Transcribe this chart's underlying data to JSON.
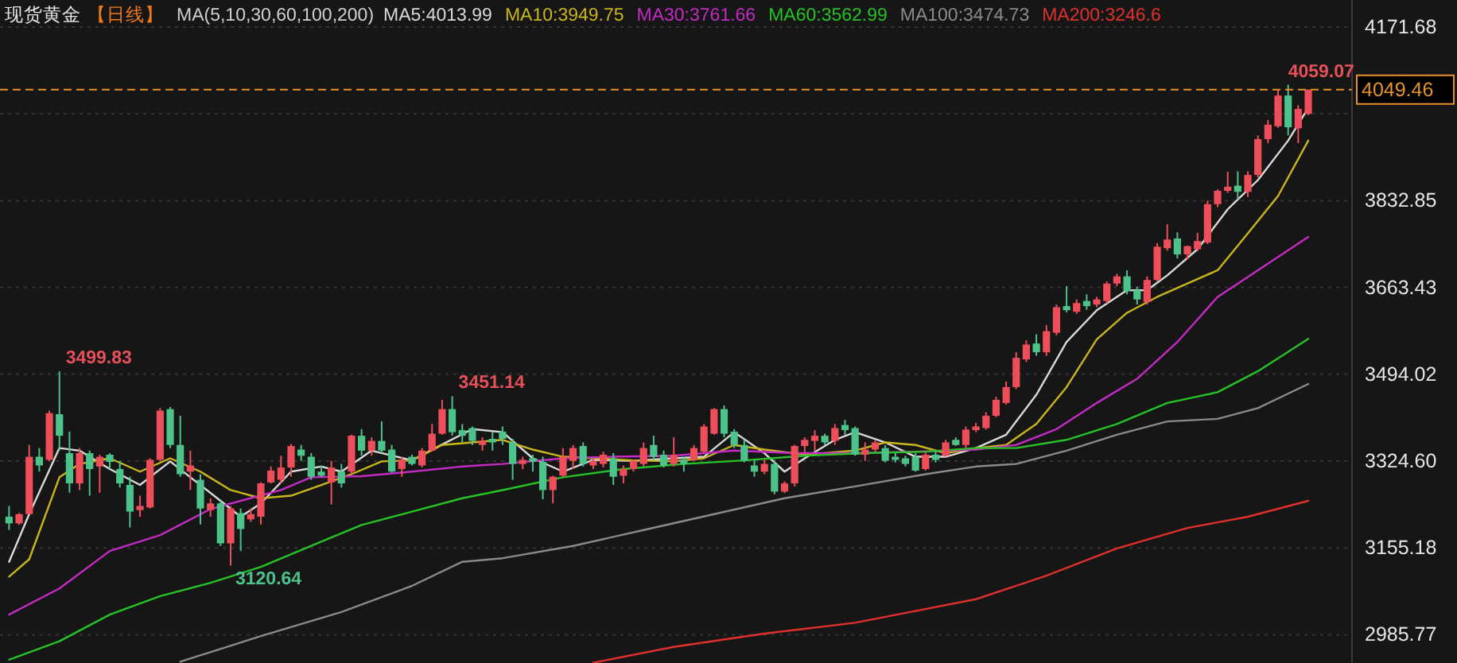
{
  "chart_data": {
    "type": "candlestick",
    "title": "现货黄金",
    "subtitle": "【日线】",
    "legend_title": "MA(5,10,30,60,100,200)",
    "legend": "top",
    "grid": "y",
    "ylim": [
      2930.5,
      4224.4
    ],
    "yticks": [
      4171.68,
      {
        "value": 4002.27,
        "label": null
      },
      3832.85,
      3663.43,
      3494.02,
      {
        "value": 3324.6,
        "label": "3324.60"
      },
      3155.18,
      2985.77
    ],
    "categories": [
      null,
      null,
      null,
      null,
      null,
      null,
      null,
      null,
      null,
      null,
      null,
      null,
      null,
      null,
      null,
      null,
      null,
      null,
      null,
      null,
      null,
      null,
      null,
      null,
      null,
      null,
      null,
      null,
      null,
      null,
      null,
      null,
      null,
      null,
      null,
      null,
      null,
      null,
      null,
      null,
      null,
      null,
      null,
      null,
      null,
      null,
      null,
      null,
      null,
      null,
      null,
      null,
      null,
      null,
      null,
      null,
      null,
      null,
      null,
      null,
      null,
      null,
      null,
      null,
      null,
      null,
      null,
      null,
      null,
      null,
      null,
      null,
      null,
      null,
      null,
      null,
      null,
      null,
      null,
      null,
      null,
      null,
      null,
      null,
      null,
      null,
      null,
      null,
      null,
      null,
      null,
      null,
      null,
      null,
      null,
      null,
      null,
      null,
      null,
      null,
      null,
      null,
      null,
      null,
      null,
      null,
      null,
      null,
      null,
      null,
      null,
      null,
      null,
      null,
      null,
      null,
      null,
      null,
      null,
      null,
      null,
      null,
      null,
      null,
      null,
      null,
      null,
      null,
      null,
      null
    ],
    "ohlc": [
      [
        3216,
        3237,
        3190,
        3203
      ],
      [
        3203,
        3223,
        3200,
        3221
      ],
      [
        3221,
        3356,
        3221,
        3333
      ],
      [
        3333,
        3350,
        3304,
        3316
      ],
      [
        3327,
        3423,
        3325,
        3418
      ],
      [
        3416,
        3499.83,
        3345,
        3374
      ],
      [
        3340,
        3382,
        3263,
        3281
      ],
      [
        3281,
        3350,
        3268,
        3340
      ],
      [
        3340,
        3345,
        3257,
        3309
      ],
      [
        3314,
        3337,
        3263,
        3333
      ],
      [
        3337,
        3340,
        3309,
        3323
      ],
      [
        3309,
        3325,
        3273,
        3281
      ],
      [
        3278,
        3294,
        3195,
        3226
      ],
      [
        3229,
        3257,
        3216,
        3237
      ],
      [
        3234,
        3330,
        3232,
        3327
      ],
      [
        3327,
        3428,
        3325,
        3423
      ],
      [
        3426,
        3430,
        3350,
        3356
      ],
      [
        3356,
        3413,
        3294,
        3299
      ],
      [
        3304,
        3345,
        3268,
        3316
      ],
      [
        3288,
        3299,
        3201,
        3232
      ],
      [
        3229,
        3252,
        3216,
        3242
      ],
      [
        3242,
        3247,
        3159,
        3164
      ],
      [
        3164,
        3237,
        3120.64,
        3232
      ],
      [
        3223,
        3232,
        3149,
        3192
      ],
      [
        3211,
        3232,
        3206,
        3221
      ],
      [
        3216,
        3283,
        3201,
        3281
      ],
      [
        3283,
        3314,
        3281,
        3306
      ],
      [
        3288,
        3335,
        3281,
        3312
      ],
      [
        3312,
        3358,
        3294,
        3354
      ],
      [
        3347,
        3356,
        3325,
        3335
      ],
      [
        3333,
        3340,
        3288,
        3294
      ],
      [
        3304,
        3316,
        3294,
        3296
      ],
      [
        3283,
        3325,
        3240,
        3312
      ],
      [
        3304,
        3319,
        3273,
        3281
      ],
      [
        3304,
        3376,
        3299,
        3374
      ],
      [
        3374,
        3387,
        3335,
        3345
      ],
      [
        3345,
        3371,
        3335,
        3364
      ],
      [
        3364,
        3402,
        3340,
        3345
      ],
      [
        3347,
        3356,
        3302,
        3304
      ],
      [
        3309,
        3333,
        3294,
        3327
      ],
      [
        3333,
        3337,
        3316,
        3319
      ],
      [
        3316,
        3350,
        3312,
        3345
      ],
      [
        3345,
        3397,
        3343,
        3378
      ],
      [
        3378,
        3444,
        3376,
        3426
      ],
      [
        3426,
        3451.14,
        3374,
        3381
      ],
      [
        3385,
        3397,
        3361,
        3374
      ],
      [
        3389,
        3392,
        3356,
        3364
      ],
      [
        3356,
        3371,
        3345,
        3364
      ],
      [
        3368,
        3382,
        3345,
        3361
      ],
      [
        3382,
        3392,
        3356,
        3368
      ],
      [
        3361,
        3368,
        3288,
        3319
      ],
      [
        3319,
        3333,
        3309,
        3327
      ],
      [
        3330,
        3337,
        3304,
        3323
      ],
      [
        3323,
        3333,
        3250,
        3268
      ],
      [
        3268,
        3296,
        3242,
        3294
      ],
      [
        3296,
        3350,
        3294,
        3333
      ],
      [
        3325,
        3356,
        3309,
        3350
      ],
      [
        3354,
        3361,
        3314,
        3319
      ],
      [
        3316,
        3330,
        3309,
        3325
      ],
      [
        3319,
        3343,
        3312,
        3337
      ],
      [
        3330,
        3340,
        3278,
        3294
      ],
      [
        3296,
        3316,
        3281,
        3309
      ],
      [
        3309,
        3327,
        3304,
        3325
      ],
      [
        3319,
        3361,
        3314,
        3350
      ],
      [
        3356,
        3374,
        3327,
        3333
      ],
      [
        3337,
        3345,
        3312,
        3316
      ],
      [
        3319,
        3371,
        3314,
        3337
      ],
      [
        3327,
        3333,
        3304,
        3319
      ],
      [
        3327,
        3356,
        3325,
        3350
      ],
      [
        3343,
        3397,
        3340,
        3392
      ],
      [
        3378,
        3428,
        3376,
        3426
      ],
      [
        3426,
        3433,
        3371,
        3378
      ],
      [
        3382,
        3387,
        3350,
        3356
      ],
      [
        3356,
        3366,
        3322,
        3325
      ],
      [
        3316,
        3327,
        3294,
        3304
      ],
      [
        3304,
        3327,
        3299,
        3319
      ],
      [
        3319,
        3327,
        3260,
        3265
      ],
      [
        3265,
        3285,
        3262,
        3281
      ],
      [
        3281,
        3356,
        3275,
        3354
      ],
      [
        3354,
        3371,
        3340,
        3366
      ],
      [
        3364,
        3385,
        3345,
        3374
      ],
      [
        3374,
        3378,
        3356,
        3361
      ],
      [
        3364,
        3397,
        3356,
        3389
      ],
      [
        3395,
        3405,
        3376,
        3385
      ],
      [
        3389,
        3392,
        3335,
        3337
      ],
      [
        3337,
        3361,
        3325,
        3347
      ],
      [
        3347,
        3366,
        3343,
        3361
      ],
      [
        3350,
        3356,
        3322,
        3325
      ],
      [
        3333,
        3340,
        3322,
        3327
      ],
      [
        3330,
        3335,
        3314,
        3319
      ],
      [
        3333,
        3340,
        3304,
        3306
      ],
      [
        3309,
        3343,
        3306,
        3337
      ],
      [
        3337,
        3345,
        3322,
        3327
      ],
      [
        3335,
        3366,
        3333,
        3361
      ],
      [
        3366,
        3371,
        3354,
        3356
      ],
      [
        3356,
        3392,
        3350,
        3386
      ],
      [
        3385,
        3399,
        3381,
        3392
      ],
      [
        3389,
        3420,
        3386,
        3413
      ],
      [
        3413,
        3450,
        3410,
        3444
      ],
      [
        3438,
        3480,
        3435,
        3469
      ],
      [
        3469,
        3537,
        3465,
        3526
      ],
      [
        3523,
        3560,
        3518,
        3552
      ],
      [
        3554,
        3572,
        3530,
        3537
      ],
      [
        3537,
        3590,
        3530,
        3578
      ],
      [
        3575,
        3630,
        3570,
        3625
      ],
      [
        3627,
        3666,
        3615,
        3619
      ],
      [
        3616,
        3640,
        3612,
        3633
      ],
      [
        3637,
        3650,
        3620,
        3627
      ],
      [
        3630,
        3645,
        3625,
        3640
      ],
      [
        3637,
        3675,
        3632,
        3671
      ],
      [
        3671,
        3690,
        3666,
        3685
      ],
      [
        3685,
        3697,
        3650,
        3656
      ],
      [
        3658,
        3665,
        3630,
        3640
      ],
      [
        3635,
        3685,
        3630,
        3678
      ],
      [
        3678,
        3750,
        3675,
        3743
      ],
      [
        3740,
        3787,
        3735,
        3757
      ],
      [
        3759,
        3771,
        3720,
        3728
      ],
      [
        3728,
        3745,
        3718,
        3744
      ],
      [
        3738,
        3770,
        3734,
        3754
      ],
      [
        3751,
        3833,
        3748,
        3826
      ],
      [
        3826,
        3855,
        3820,
        3852
      ],
      [
        3852,
        3889,
        3848,
        3860
      ],
      [
        3862,
        3890,
        3835,
        3850
      ],
      [
        3850,
        3890,
        3840,
        3883
      ],
      [
        3883,
        3960,
        3878,
        3953
      ],
      [
        3953,
        3990,
        3945,
        3981
      ],
      [
        3978,
        4050,
        3975,
        4038
      ],
      [
        4038,
        4059.07,
        3960,
        3976
      ],
      [
        3974,
        4019,
        3945,
        4012
      ],
      [
        4002,
        4050,
        4000,
        4049.46
      ]
    ],
    "colors": [
      "#4cc38a",
      "#ee4e5a",
      "#ee4e5a",
      "#4cc38a",
      "#ee4e5a",
      "#4cc38a",
      "#4cc38a",
      "#ee4e5a",
      "#4cc38a",
      "#ee4e5a",
      "#4cc38a",
      "#4cc38a",
      "#4cc38a",
      "#ee4e5a",
      "#ee4e5a",
      "#ee4e5a",
      "#4cc38a",
      "#4cc38a",
      "#ee4e5a",
      "#4cc38a",
      "#ee4e5a",
      "#4cc38a",
      "#ee4e5a",
      "#4cc38a",
      "#ee4e5a",
      "#ee4e5a",
      "#ee4e5a",
      "#ee4e5a",
      "#ee4e5a",
      "#4cc38a",
      "#4cc38a",
      "#4cc38a",
      "#ee4e5a",
      "#4cc38a",
      "#ee4e5a",
      "#4cc38a",
      "#ee4e5a",
      "#4cc38a",
      "#4cc38a",
      "#ee4e5a",
      "#4cc38a",
      "#ee4e5a",
      "#ee4e5a",
      "#ee4e5a",
      "#4cc38a",
      "#4cc38a",
      "#4cc38a",
      "#ee4e5a",
      "#4cc38a",
      "#4cc38a",
      "#4cc38a",
      "#ee4e5a",
      "#4cc38a",
      "#4cc38a",
      "#ee4e5a",
      "#ee4e5a",
      "#ee4e5a",
      "#4cc38a",
      "#ee4e5a",
      "#ee4e5a",
      "#4cc38a",
      "#ee4e5a",
      "#ee4e5a",
      "#ee4e5a",
      "#4cc38a",
      "#4cc38a",
      "#ee4e5a",
      "#4cc38a",
      "#ee4e5a",
      "#ee4e5a",
      "#ee4e5a",
      "#4cc38a",
      "#4cc38a",
      "#4cc38a",
      "#4cc38a",
      "#ee4e5a",
      "#4cc38a",
      "#ee4e5a",
      "#ee4e5a",
      "#ee4e5a",
      "#ee4e5a",
      "#4cc38a",
      "#ee4e5a",
      "#4cc38a",
      "#4cc38a",
      "#ee4e5a",
      "#ee4e5a",
      "#4cc38a",
      "#4cc38a",
      "#4cc38a",
      "#4cc38a",
      "#ee4e5a",
      "#4cc38a",
      "#ee4e5a",
      "#4cc38a",
      "#ee4e5a",
      "#ee4e5a",
      "#ee4e5a",
      "#ee4e5a",
      "#ee4e5a",
      "#ee4e5a",
      "#ee4e5a",
      "#4cc38a",
      "#ee4e5a",
      "#ee4e5a",
      "#4cc38a",
      "#ee4e5a",
      "#4cc38a",
      "#ee4e5a",
      "#ee4e5a",
      "#ee4e5a",
      "#4cc38a",
      "#4cc38a",
      "#ee4e5a",
      "#ee4e5a",
      "#ee4e5a",
      "#4cc38a",
      "#ee4e5a",
      "#ee4e5a",
      "#ee4e5a",
      "#ee4e5a",
      "#ee4e5a",
      "#4cc38a",
      "#ee4e5a",
      "#ee4e5a",
      "#ee4e5a",
      "#ee4e5a",
      "#4cc38a",
      "#ee4e5a",
      "#ee4e5a"
    ],
    "series": [
      {
        "name": "MA5:4013.99",
        "type": "line",
        "color": "#d9d9d9",
        "values": [
          3128,
          null,
          3221,
          null,
          null,
          3350,
          null,
          3345,
          null,
          null,
          3309,
          null,
          null,
          3278,
          null,
          null,
          3324,
          null,
          3293,
          null,
          null,
          3247,
          null,
          3216,
          null,
          3242,
          null,
          null,
          3304,
          null,
          null,
          3314,
          null,
          3304,
          null,
          null,
          3345,
          null,
          null,
          null,
          3326,
          null,
          null,
          3357,
          null,
          null,
          3387,
          null,
          null,
          3381,
          null,
          null,
          3330,
          null,
          null,
          3304,
          null,
          null,
          3327,
          null,
          null,
          null,
          3325,
          null,
          null,
          null,
          3330,
          null,
          null,
          3333,
          null,
          null,
          3381,
          null,
          null,
          3340,
          null,
          3304,
          null,
          3330,
          null,
          null,
          3366,
          null,
          3381,
          null,
          null,
          3361,
          null,
          null,
          3333,
          null,
          null,
          3333,
          null,
          null,
          3350,
          null,
          null,
          3376,
          null,
          null,
          3454,
          null,
          null,
          3557,
          null,
          null,
          3619,
          null,
          null,
          3658,
          null,
          3658,
          null,
          3687,
          null,
          null,
          3738,
          null,
          null,
          3816,
          null,
          null,
          3873,
          null,
          null,
          3950,
          null,
          4014
        ]
      },
      {
        "name": "MA10:3949.75",
        "type": "line",
        "color": "#c9b51c",
        "values": [
          3099,
          null,
          3133,
          null,
          null,
          3293,
          null,
          3319,
          null,
          null,
          3330,
          null,
          null,
          3304,
          null,
          null,
          3330,
          null,
          null,
          3304,
          null,
          null,
          3268,
          null,
          null,
          3252,
          null,
          null,
          3257,
          null,
          null,
          3278,
          null,
          null,
          3299,
          null,
          null,
          3324,
          null,
          null,
          3326,
          null,
          null,
          3356,
          null,
          null,
          3361,
          null,
          null,
          3366,
          null,
          null,
          3347,
          null,
          null,
          3333,
          null,
          null,
          3330,
          null,
          null,
          null,
          3326,
          null,
          null,
          null,
          3324,
          null,
          null,
          3330,
          null,
          null,
          3356,
          null,
          null,
          3347,
          null,
          null,
          null,
          3337,
          null,
          null,
          null,
          null,
          3345,
          null,
          null,
          3361,
          null,
          null,
          3356,
          null,
          null,
          3340,
          null,
          null,
          3350,
          null,
          null,
          3356,
          null,
          null,
          3397,
          null,
          null,
          3469,
          null,
          null,
          3562,
          null,
          null,
          3614,
          null,
          null,
          3645,
          null,
          null,
          3671,
          null,
          null,
          3697,
          null,
          null,
          3769,
          null,
          null,
          3842,
          null,
          null,
          3950
        ]
      },
      {
        "name": "MA30:3761.66",
        "type": "line",
        "color": "#c42bc4",
        "values": [
          3025,
          null,
          null,
          null,
          null,
          3076,
          null,
          null,
          null,
          null,
          3149,
          null,
          null,
          null,
          null,
          3180,
          null,
          null,
          null,
          null,
          3231,
          null,
          null,
          3247,
          null,
          null,
          null,
          3268,
          null,
          null,
          3293,
          null,
          null,
          null,
          null,
          3295,
          null,
          null,
          null,
          null,
          3304,
          null,
          null,
          null,
          null,
          3314,
          null,
          null,
          null,
          3319,
          null,
          null,
          null,
          null,
          null,
          3330,
          null,
          null,
          null,
          null,
          3333,
          null,
          null,
          null,
          null,
          null,
          3335,
          null,
          null,
          null,
          null,
          null,
          3345,
          null,
          null,
          null,
          null,
          null,
          3340,
          null,
          null,
          null,
          null,
          null,
          3340,
          null,
          null,
          null,
          null,
          null,
          3343,
          null,
          null,
          null,
          null,
          null,
          3347,
          null,
          null,
          null,
          3356,
          null,
          null,
          null,
          3387,
          null,
          null,
          null,
          3438,
          null,
          null,
          null,
          3485,
          null,
          null,
          null,
          3557,
          null,
          null,
          null,
          3645,
          null,
          null,
          null,
          3697,
          null,
          null,
          null,
          null,
          3762
        ]
      },
      {
        "name": "MA60:3562.99",
        "type": "line",
        "color": "#26c226",
        "values": [
          2937,
          null,
          null,
          null,
          null,
          2973,
          null,
          null,
          null,
          null,
          3025,
          null,
          null,
          null,
          null,
          3061,
          null,
          null,
          null,
          null,
          3087,
          null,
          null,
          null,
          null,
          3118,
          null,
          null,
          null,
          null,
          3159,
          null,
          null,
          null,
          null,
          3200,
          null,
          null,
          null,
          null,
          3226,
          null,
          null,
          null,
          null,
          3252,
          null,
          null,
          null,
          3268,
          null,
          null,
          null,
          null,
          null,
          3293,
          null,
          null,
          null,
          null,
          null,
          3309,
          null,
          null,
          null,
          null,
          null,
          3319,
          null,
          null,
          null,
          null,
          null,
          3326,
          null,
          null,
          null,
          null,
          null,
          3335,
          null,
          null,
          null,
          null,
          null,
          3340,
          null,
          null,
          null,
          null,
          null,
          3343,
          null,
          null,
          null,
          null,
          3350,
          null,
          null,
          null,
          3350,
          null,
          null,
          null,
          null,
          3366,
          null,
          null,
          null,
          null,
          3397,
          null,
          null,
          null,
          null,
          3438,
          null,
          null,
          null,
          null,
          3459,
          null,
          null,
          null,
          3500,
          null,
          null,
          null,
          null,
          3563
        ]
      },
      {
        "name": "MA100:3474.73",
        "type": "line",
        "color": "#8a8a8a",
        "values": [
          null,
          null,
          null,
          null,
          null,
          null,
          null,
          null,
          null,
          null,
          null,
          null,
          null,
          null,
          null,
          null,
          null,
          2933,
          null,
          null,
          null,
          null,
          null,
          null,
          null,
          2983,
          null,
          null,
          null,
          null,
          null,
          null,
          null,
          3030,
          null,
          null,
          null,
          null,
          null,
          null,
          3081,
          null,
          null,
          null,
          null,
          3128,
          null,
          null,
          null,
          3135,
          null,
          null,
          null,
          null,
          null,
          null,
          3159,
          null,
          null,
          null,
          null,
          null,
          null,
          3190,
          null,
          null,
          null,
          null,
          null,
          null,
          3221,
          null,
          null,
          null,
          null,
          null,
          null,
          3252,
          null,
          null,
          null,
          null,
          null,
          null,
          3275,
          null,
          null,
          null,
          null,
          null,
          null,
          3299,
          null,
          null,
          null,
          null,
          3314,
          null,
          null,
          null,
          3319,
          null,
          null,
          null,
          null,
          3345,
          null,
          null,
          null,
          null,
          3376,
          null,
          null,
          null,
          null,
          3402,
          null,
          null,
          null,
          null,
          3407,
          null,
          null,
          null,
          3428,
          null,
          null,
          null,
          null,
          3475
        ]
      },
      {
        "name": "MA200:3246.6",
        "type": "line",
        "color": "#e0302c",
        "values": [
          null,
          null,
          null,
          null,
          null,
          null,
          null,
          null,
          null,
          null,
          null,
          null,
          null,
          null,
          null,
          null,
          null,
          null,
          null,
          null,
          null,
          null,
          null,
          null,
          null,
          null,
          null,
          null,
          null,
          null,
          null,
          null,
          null,
          null,
          null,
          null,
          null,
          null,
          null,
          null,
          null,
          null,
          null,
          null,
          null,
          null,
          null,
          null,
          null,
          null,
          null,
          null,
          null,
          null,
          null,
          null,
          null,
          null,
          2931,
          null,
          null,
          null,
          null,
          null,
          null,
          null,
          2962,
          null,
          null,
          null,
          null,
          null,
          null,
          null,
          null,
          2988,
          null,
          null,
          null,
          null,
          null,
          null,
          null,
          null,
          3009,
          null,
          null,
          null,
          null,
          null,
          null,
          null,
          null,
          null,
          null,
          null,
          3055,
          null,
          null,
          null,
          null,
          null,
          null,
          3101,
          null,
          null,
          null,
          null,
          null,
          null,
          3154,
          null,
          null,
          null,
          null,
          null,
          null,
          3194,
          null,
          null,
          null,
          null,
          null,
          3216,
          null,
          null,
          null,
          null,
          null,
          3247
        ]
      }
    ],
    "ref_lines": [
      {
        "axis": "y",
        "value": 4049.46,
        "label": "4049.46",
        "color": "#e8922c",
        "line_style": "dashed"
      }
    ],
    "annotations": [
      "3499.83",
      "3451.14",
      "3120.64",
      "4059.07"
    ]
  }
}
